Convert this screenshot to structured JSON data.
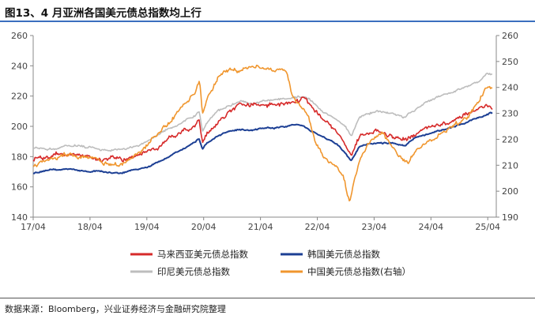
{
  "title": "图13、4 月亚洲各国美元债总指数均上行",
  "source": "数据来源：Bloomberg，兴业证券经济与金融研究院整理",
  "chart_data": {
    "type": "line",
    "left_axis": {
      "min": 140,
      "max": 260,
      "ticks": [
        140,
        160,
        180,
        200,
        220,
        240,
        260
      ]
    },
    "right_axis": {
      "min": 190,
      "max": 260,
      "ticks": [
        190,
        200,
        210,
        220,
        230,
        240,
        250,
        260
      ]
    },
    "x_axis": {
      "start": 2017.25,
      "end": 2025.4,
      "tick_labels": [
        "17/04",
        "18/04",
        "19/04",
        "20/04",
        "21/04",
        "22/04",
        "23/04",
        "24/04",
        "25/04"
      ],
      "tick_values": [
        2017.25,
        2018.25,
        2019.25,
        2020.25,
        2021.25,
        2022.25,
        2023.25,
        2024.25,
        2025.25
      ]
    },
    "grid": false,
    "legend_position": "bottom",
    "series": [
      {
        "name": "马来西亚美元债总指数",
        "axis": "left",
        "color": "#d62a2a",
        "noise": 1.6,
        "points": [
          [
            2017.25,
            178
          ],
          [
            2017.5,
            180
          ],
          [
            2017.8,
            182
          ],
          [
            2018.1,
            181
          ],
          [
            2018.5,
            178
          ],
          [
            2018.8,
            178
          ],
          [
            2019.0,
            180
          ],
          [
            2019.25,
            183
          ],
          [
            2019.6,
            190
          ],
          [
            2019.9,
            196
          ],
          [
            2020.1,
            200
          ],
          [
            2020.17,
            203
          ],
          [
            2020.23,
            188
          ],
          [
            2020.3,
            195
          ],
          [
            2020.5,
            203
          ],
          [
            2020.7,
            210
          ],
          [
            2020.9,
            216
          ],
          [
            2021.1,
            214
          ],
          [
            2021.3,
            216
          ],
          [
            2021.5,
            214
          ],
          [
            2021.8,
            216
          ],
          [
            2022.0,
            218
          ],
          [
            2022.1,
            214
          ],
          [
            2022.2,
            210
          ],
          [
            2022.4,
            204
          ],
          [
            2022.6,
            196
          ],
          [
            2022.75,
            186
          ],
          [
            2022.85,
            180
          ],
          [
            2022.92,
            188
          ],
          [
            2023.0,
            194
          ],
          [
            2023.3,
            197
          ],
          [
            2023.6,
            193
          ],
          [
            2023.8,
            192
          ],
          [
            2024.0,
            196
          ],
          [
            2024.3,
            200
          ],
          [
            2024.6,
            203
          ],
          [
            2024.9,
            208
          ],
          [
            2025.1,
            212
          ],
          [
            2025.25,
            214
          ],
          [
            2025.33,
            211
          ]
        ]
      },
      {
        "name": "韩国美元债总指数",
        "axis": "left",
        "color": "#1c3f94",
        "noise": 0.5,
        "points": [
          [
            2017.25,
            169
          ],
          [
            2017.5,
            171
          ],
          [
            2017.8,
            172
          ],
          [
            2018.1,
            171
          ],
          [
            2018.5,
            170
          ],
          [
            2018.8,
            169
          ],
          [
            2019.0,
            171
          ],
          [
            2019.25,
            173
          ],
          [
            2019.6,
            179
          ],
          [
            2019.9,
            185
          ],
          [
            2020.1,
            190
          ],
          [
            2020.17,
            192
          ],
          [
            2020.23,
            185
          ],
          [
            2020.3,
            189
          ],
          [
            2020.5,
            194
          ],
          [
            2020.7,
            197
          ],
          [
            2020.9,
            198
          ],
          [
            2021.1,
            197
          ],
          [
            2021.3,
            199
          ],
          [
            2021.5,
            199
          ],
          [
            2021.8,
            201
          ],
          [
            2022.0,
            200
          ],
          [
            2022.1,
            198
          ],
          [
            2022.2,
            196
          ],
          [
            2022.4,
            192
          ],
          [
            2022.6,
            188
          ],
          [
            2022.75,
            182
          ],
          [
            2022.85,
            177
          ],
          [
            2022.92,
            182
          ],
          [
            2023.0,
            187
          ],
          [
            2023.3,
            189
          ],
          [
            2023.6,
            189
          ],
          [
            2023.8,
            188
          ],
          [
            2024.0,
            193
          ],
          [
            2024.3,
            196
          ],
          [
            2024.6,
            199
          ],
          [
            2024.9,
            203
          ],
          [
            2025.1,
            206
          ],
          [
            2025.25,
            208
          ],
          [
            2025.33,
            209
          ]
        ]
      },
      {
        "name": "印尼美元债总指数",
        "axis": "left",
        "color": "#bdbdbd",
        "noise": 0.8,
        "points": [
          [
            2017.25,
            186
          ],
          [
            2017.5,
            185
          ],
          [
            2017.8,
            187
          ],
          [
            2018.1,
            187
          ],
          [
            2018.5,
            184
          ],
          [
            2018.8,
            185
          ],
          [
            2019.0,
            186
          ],
          [
            2019.25,
            190
          ],
          [
            2019.6,
            198
          ],
          [
            2019.9,
            203
          ],
          [
            2020.1,
            207
          ],
          [
            2020.17,
            210
          ],
          [
            2020.23,
            196
          ],
          [
            2020.3,
            202
          ],
          [
            2020.5,
            210
          ],
          [
            2020.7,
            214
          ],
          [
            2020.9,
            216
          ],
          [
            2021.1,
            215
          ],
          [
            2021.3,
            217
          ],
          [
            2021.5,
            217
          ],
          [
            2021.8,
            219
          ],
          [
            2022.0,
            220
          ],
          [
            2022.1,
            218
          ],
          [
            2022.2,
            215
          ],
          [
            2022.4,
            209
          ],
          [
            2022.6,
            204
          ],
          [
            2022.75,
            200
          ],
          [
            2022.85,
            194
          ],
          [
            2022.92,
            201
          ],
          [
            2023.0,
            206
          ],
          [
            2023.3,
            210
          ],
          [
            2023.6,
            208
          ],
          [
            2023.8,
            206
          ],
          [
            2024.0,
            212
          ],
          [
            2024.3,
            218
          ],
          [
            2024.6,
            222
          ],
          [
            2024.9,
            226
          ],
          [
            2025.1,
            230
          ],
          [
            2025.25,
            235
          ],
          [
            2025.33,
            234
          ]
        ]
      },
      {
        "name": "中国美元债总指数(右轴）",
        "axis": "right",
        "color": "#f0962e",
        "noise": 0.9,
        "points": [
          [
            2017.25,
            210
          ],
          [
            2017.5,
            212
          ],
          [
            2017.8,
            214
          ],
          [
            2018.1,
            213
          ],
          [
            2018.5,
            211
          ],
          [
            2018.8,
            210
          ],
          [
            2019.0,
            213
          ],
          [
            2019.25,
            218
          ],
          [
            2019.6,
            226
          ],
          [
            2019.9,
            233
          ],
          [
            2020.1,
            238
          ],
          [
            2020.18,
            243
          ],
          [
            2020.23,
            230
          ],
          [
            2020.3,
            235
          ],
          [
            2020.5,
            244
          ],
          [
            2020.7,
            247
          ],
          [
            2020.9,
            246
          ],
          [
            2021.1,
            248
          ],
          [
            2021.3,
            247
          ],
          [
            2021.5,
            246
          ],
          [
            2021.7,
            247
          ],
          [
            2021.8,
            238
          ],
          [
            2021.9,
            234
          ],
          [
            2022.0,
            232
          ],
          [
            2022.1,
            228
          ],
          [
            2022.2,
            220
          ],
          [
            2022.35,
            214
          ],
          [
            2022.5,
            211
          ],
          [
            2022.6,
            209
          ],
          [
            2022.7,
            206
          ],
          [
            2022.78,
            199
          ],
          [
            2022.82,
            196
          ],
          [
            2022.9,
            204
          ],
          [
            2023.0,
            212
          ],
          [
            2023.2,
            220
          ],
          [
            2023.4,
            222
          ],
          [
            2023.6,
            216
          ],
          [
            2023.75,
            212
          ],
          [
            2023.85,
            211
          ],
          [
            2024.0,
            216
          ],
          [
            2024.3,
            220
          ],
          [
            2024.6,
            225
          ],
          [
            2024.9,
            228
          ],
          [
            2025.1,
            235
          ],
          [
            2025.25,
            241
          ],
          [
            2025.33,
            240
          ]
        ]
      }
    ]
  }
}
